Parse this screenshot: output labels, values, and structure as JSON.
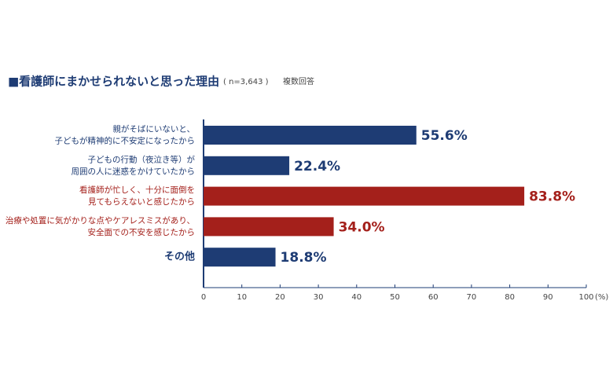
{
  "chart_data": {
    "type": "barh",
    "title": "■看護師にまかせられないと思った理由",
    "subtitle": "( n=3,643 )",
    "note": "複数回答",
    "categories": [
      [
        "親がそばにいないと、",
        "子どもが精神的に不安定になったから"
      ],
      [
        "子どもの行動（夜泣き等）が",
        "周囲の人に迷惑をかけていたから"
      ],
      [
        "看護師が忙しく、十分に面倒を",
        "見てもらえないと感じたから"
      ],
      [
        "治療や処置に気がかりな点やケアレスミスがあり、",
        "安全面での不安を感じたから"
      ],
      [
        "その他"
      ]
    ],
    "values": [
      55.6,
      22.4,
      83.8,
      34.0,
      18.8
    ],
    "value_labels": [
      "55.6%",
      "22.4%",
      "83.8%",
      "34.0%",
      "18.8%"
    ],
    "colors": [
      "#1e3c74",
      "#1e3c74",
      "#a4201b",
      "#a4201b",
      "#1e3c74"
    ],
    "xlim": [
      0,
      100
    ],
    "xticks": [
      0,
      10,
      20,
      30,
      40,
      50,
      60,
      70,
      80,
      90,
      100
    ],
    "x_unit": "(%)"
  }
}
